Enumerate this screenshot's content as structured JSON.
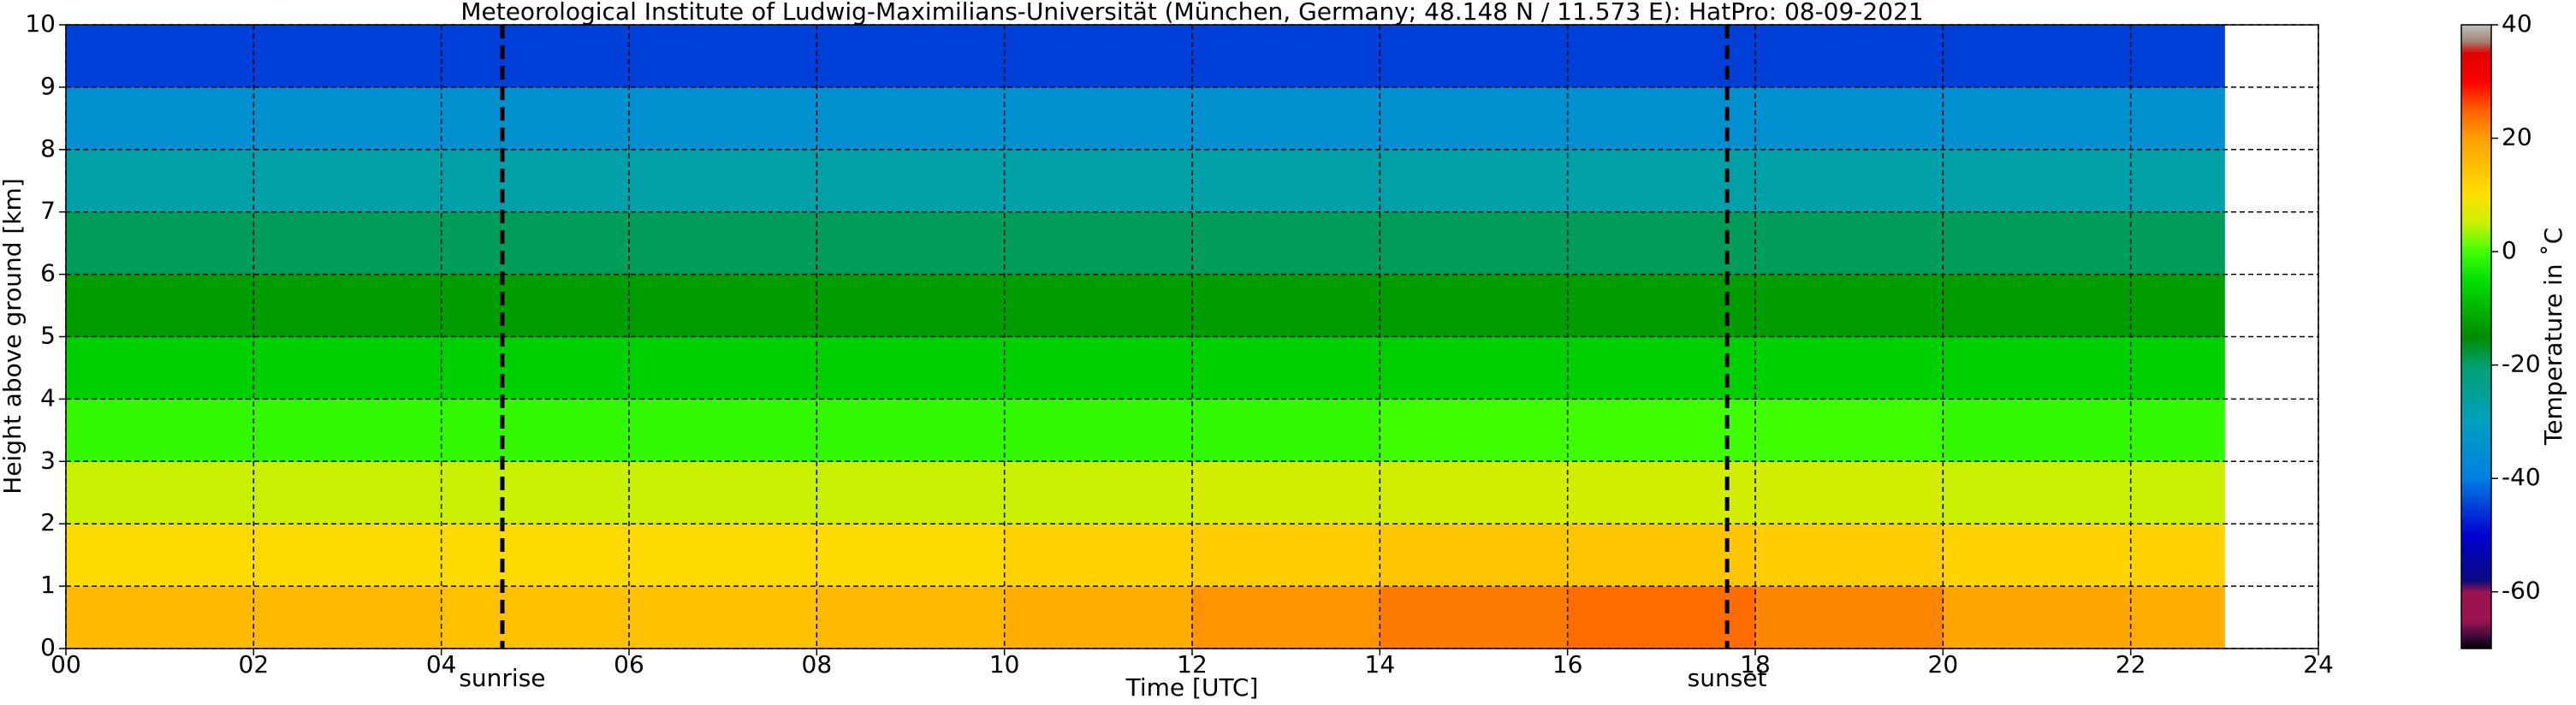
{
  "chart_data": {
    "type": "heatmap",
    "title": "Meteorological Institute of Ludwig-Maximilians-Universität (München, Germany; 48.148 N / 11.573 E):    HatPro: 08-09-2021",
    "x_label": "Time [UTC]",
    "y_label": "Height above ground [km]",
    "colorbar_label": "Temperature in ˚C",
    "x_edges": [
      0,
      2,
      4,
      6,
      8,
      10,
      12,
      14,
      16,
      18,
      20,
      22,
      23
    ],
    "y_edges": [
      0,
      1,
      2,
      3,
      4,
      5,
      6,
      7,
      8,
      9,
      10
    ],
    "z": [
      [
        16,
        16,
        15,
        15,
        16,
        18,
        21,
        23,
        24,
        22,
        19,
        18
      ],
      [
        11,
        11,
        11,
        11,
        11,
        12,
        13,
        14,
        14,
        13,
        12,
        12
      ],
      [
        5,
        5,
        5,
        5,
        5,
        5,
        6,
        6,
        6,
        6,
        5,
        5
      ],
      [
        -1,
        -1,
        -1,
        -1,
        -1,
        -1,
        -1,
        0,
        0,
        0,
        -1,
        -1
      ],
      [
        -7,
        -7,
        -7,
        -7,
        -7,
        -7,
        -7,
        -7,
        -7,
        -7,
        -7,
        -7
      ],
      [
        -13,
        -13,
        -13,
        -13,
        -13,
        -13,
        -13,
        -13,
        -13,
        -13,
        -13,
        -13
      ],
      [
        -19,
        -19,
        -19,
        -19,
        -19,
        -19,
        -19,
        -19,
        -19,
        -19,
        -19,
        -19
      ],
      [
        -27,
        -27,
        -27,
        -27,
        -27,
        -27,
        -27,
        -27,
        -27,
        -27,
        -27,
        -27
      ],
      [
        -35,
        -35,
        -35,
        -35,
        -35,
        -35,
        -35,
        -35,
        -35,
        -35,
        -35,
        -35
      ],
      [
        -45,
        -45,
        -45,
        -45,
        -45,
        -45,
        -45,
        -45,
        -45,
        -45,
        -45,
        -45
      ]
    ],
    "xlim": [
      0,
      24
    ],
    "xticks": [
      {
        "value": 0,
        "label": "00"
      },
      {
        "value": 2,
        "label": "02"
      },
      {
        "value": 4,
        "label": "04"
      },
      {
        "value": 6,
        "label": "06"
      },
      {
        "value": 8,
        "label": "08"
      },
      10,
      12,
      14,
      16,
      18,
      20,
      22,
      24
    ],
    "ylim": [
      0,
      10
    ],
    "yticks": [
      0,
      1,
      2,
      3,
      4,
      5,
      6,
      7,
      8,
      9,
      10
    ],
    "clim": [
      -70,
      40
    ],
    "cticks": [
      -60,
      -40,
      -20,
      0,
      20,
      40
    ],
    "colormap": [
      {
        "value": -70,
        "color": "#000000"
      },
      {
        "value": -68,
        "color": "#3a0a3a"
      },
      {
        "value": -65,
        "color": "#9b1450"
      },
      {
        "value": -60,
        "color": "#9b1450"
      },
      {
        "value": -58,
        "color": "#0a0a80"
      },
      {
        "value": -50,
        "color": "#0000d0"
      },
      {
        "value": -40,
        "color": "#0080e0"
      },
      {
        "value": -30,
        "color": "#00a0c0"
      },
      {
        "value": -20,
        "color": "#00a070"
      },
      {
        "value": -15,
        "color": "#008c00"
      },
      {
        "value": -5,
        "color": "#00e000"
      },
      {
        "value": 0,
        "color": "#40ff00"
      },
      {
        "value": 5,
        "color": "#c8f000"
      },
      {
        "value": 10,
        "color": "#ffe000"
      },
      {
        "value": 20,
        "color": "#ffa000"
      },
      {
        "value": 25,
        "color": "#ff6000"
      },
      {
        "value": 30,
        "color": "#ff0000"
      },
      {
        "value": 35,
        "color": "#e00000"
      },
      {
        "value": 37,
        "color": "#a08070"
      },
      {
        "value": 40,
        "color": "#c0c0c0"
      }
    ],
    "vlines": [
      {
        "x": 4.65,
        "label": "sunrise"
      },
      {
        "x": 17.7,
        "label": "sunset"
      }
    ],
    "grid": true
  }
}
